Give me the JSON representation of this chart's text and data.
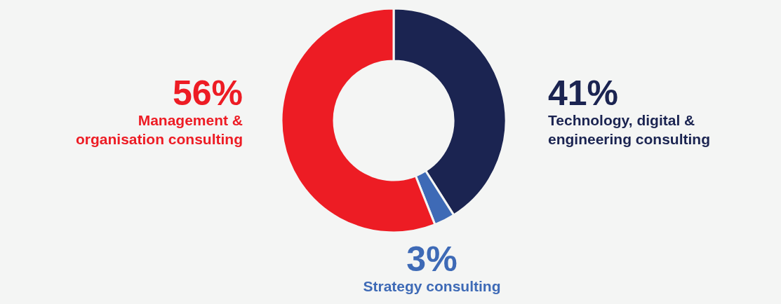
{
  "chart_data": {
    "type": "donut",
    "categories": [
      "Technology, digital & engineering consulting",
      "Strategy consulting",
      "Management & organisation consulting"
    ],
    "values": [
      41,
      3,
      56
    ],
    "value_labels": [
      "41%",
      "3%",
      "56%"
    ],
    "colors": [
      "#1b2451",
      "#3e6ab6",
      "#ed1c24"
    ]
  }
}
